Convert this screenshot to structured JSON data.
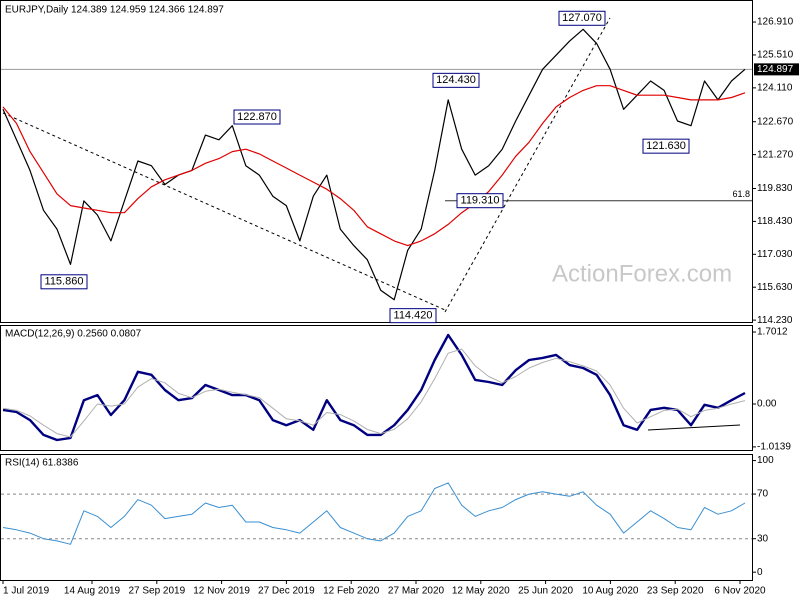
{
  "chart_data": [
    {
      "type": "line",
      "title": "EURJPY,Daily  124.389 124.959 124.366 124.897",
      "watermark": "ActionForex.com",
      "ylim": [
        114.15,
        127.72
      ],
      "yticks": [
        {
          "value": 126.91,
          "label": "126.910"
        },
        {
          "value": 125.51,
          "label": "125.510"
        },
        {
          "value": 124.11,
          "label": "124.110"
        },
        {
          "value": 122.67,
          "label": "122.670"
        },
        {
          "value": 121.27,
          "label": "121.270"
        },
        {
          "value": 119.83,
          "label": "119.830"
        },
        {
          "value": 118.43,
          "label": "118.430"
        },
        {
          "value": 117.03,
          "label": "117.030"
        },
        {
          "value": 115.63,
          "label": "115.630"
        },
        {
          "value": 114.23,
          "label": "114.230"
        }
      ],
      "series": [
        {
          "color": "#000000",
          "width": 1.2,
          "values": [
            123.2,
            121.9,
            120.6,
            118.9,
            118.1,
            116.6,
            119.3,
            118.7,
            117.6,
            119.3,
            121.0,
            120.8,
            120.0,
            120.4,
            120.6,
            122.1,
            121.9,
            122.5,
            120.8,
            120.4,
            119.5,
            119.1,
            117.6,
            119.5,
            120.4,
            118.1,
            117.4,
            116.8,
            115.5,
            115.1,
            117.2,
            118.1,
            120.6,
            123.6,
            121.5,
            120.4,
            120.8,
            121.5,
            122.7,
            123.8,
            124.9,
            125.5,
            126.1,
            126.6,
            126.0,
            124.9,
            123.2,
            123.8,
            124.4,
            124.0,
            122.7,
            122.5,
            124.4,
            123.6,
            124.4,
            124.9
          ]
        },
        {
          "color": "#e00000",
          "width": 1.2,
          "values": [
            123.3,
            122.6,
            121.4,
            120.5,
            119.6,
            119.1,
            119.0,
            118.9,
            118.8,
            118.8,
            119.4,
            119.9,
            120.2,
            120.4,
            120.6,
            120.9,
            121.1,
            121.4,
            121.5,
            121.3,
            121.0,
            120.7,
            120.4,
            120.1,
            119.8,
            119.4,
            118.9,
            118.2,
            117.9,
            117.6,
            117.4,
            117.6,
            117.9,
            118.3,
            118.8,
            119.2,
            119.7,
            120.4,
            121.2,
            121.8,
            122.6,
            123.3,
            123.7,
            124.0,
            124.2,
            124.2,
            124.0,
            123.8,
            123.8,
            123.8,
            123.7,
            123.6,
            123.6,
            123.6,
            123.7,
            123.9
          ]
        }
      ],
      "annotations": [
        {
          "value": 127.07,
          "label": "127.070"
        },
        {
          "value": 124.43,
          "label": "124.430"
        },
        {
          "value": 122.87,
          "label": "122.870"
        },
        {
          "value": 121.63,
          "label": "121.630"
        },
        {
          "value": 119.31,
          "label": "119.310"
        },
        {
          "value": 115.86,
          "label": "115.860"
        },
        {
          "value": 114.42,
          "label": "114.420"
        }
      ],
      "last": {
        "value": 124.897,
        "label": "124.897"
      },
      "fib": {
        "level": 61.8,
        "price": 119.31
      }
    },
    {
      "type": "line",
      "title": "MACD(12,26,9) 0.2560 0.0807",
      "ylim": [
        -1.087,
        1.867
      ],
      "yticks": [
        1.7012,
        {
          "value": 0,
          "label": "0.00"
        },
        -1.0139
      ],
      "series": [
        {
          "color": "#000080",
          "width": 2.4,
          "values": [
            -0.14,
            -0.19,
            -0.38,
            -0.73,
            -0.85,
            -0.8,
            0.09,
            0.21,
            -0.26,
            0.09,
            0.76,
            0.69,
            0.33,
            0.09,
            0.14,
            0.45,
            0.33,
            0.21,
            0.21,
            0.09,
            -0.38,
            -0.5,
            -0.38,
            -0.61,
            0.09,
            -0.38,
            -0.5,
            -0.73,
            -0.73,
            -0.5,
            -0.14,
            0.33,
            1.04,
            1.63,
            1.16,
            0.57,
            0.52,
            0.45,
            0.8,
            1.04,
            1.09,
            1.16,
            0.92,
            0.85,
            0.69,
            0.21,
            -0.5,
            -0.61,
            -0.14,
            -0.09,
            -0.14,
            -0.5,
            -0.02,
            -0.09,
            0.09,
            0.26
          ]
        },
        {
          "color": "#b0b0b0",
          "width": 1,
          "values": [
            -0.1,
            -0.15,
            -0.28,
            -0.5,
            -0.7,
            -0.78,
            -0.4,
            0.0,
            -0.05,
            0.0,
            0.4,
            0.6,
            0.5,
            0.25,
            0.15,
            0.3,
            0.35,
            0.28,
            0.22,
            0.15,
            -0.1,
            -0.35,
            -0.4,
            -0.5,
            -0.2,
            -0.25,
            -0.4,
            -0.6,
            -0.7,
            -0.6,
            -0.35,
            0.05,
            0.6,
            1.2,
            1.3,
            0.9,
            0.65,
            0.5,
            0.65,
            0.85,
            0.98,
            1.08,
            1.0,
            0.9,
            0.78,
            0.45,
            -0.1,
            -0.45,
            -0.3,
            -0.15,
            -0.12,
            -0.3,
            -0.15,
            -0.1,
            0.0,
            0.08
          ]
        }
      ]
    },
    {
      "type": "line",
      "title": "RSI(14) 61.8386",
      "ylim": [
        -7,
        105
      ],
      "yticks": [
        100,
        70,
        30,
        0
      ],
      "grid_dashed": true,
      "series": [
        {
          "color": "#3a8fd0",
          "width": 1,
          "values": [
            40,
            38,
            35,
            30,
            28,
            25,
            55,
            50,
            40,
            50,
            65,
            60,
            48,
            50,
            52,
            62,
            58,
            60,
            45,
            45,
            40,
            38,
            35,
            45,
            55,
            40,
            35,
            30,
            28,
            35,
            50,
            55,
            75,
            80,
            60,
            50,
            55,
            58,
            65,
            70,
            72,
            70,
            68,
            72,
            60,
            52,
            35,
            45,
            55,
            48,
            40,
            38,
            58,
            52,
            55,
            62
          ]
        }
      ],
      "x_labels": [
        "1 Jul 2019",
        "14 Aug 2019",
        "27 Sep 2019",
        "12 Nov 2019",
        "27 Dec 2019",
        "12 Feb 2020",
        "27 Mar 2020",
        "12 May 2020",
        "25 Jun 2020",
        "10 Aug 2020",
        "23 Sep 2020",
        "6 Nov 2020"
      ]
    }
  ]
}
